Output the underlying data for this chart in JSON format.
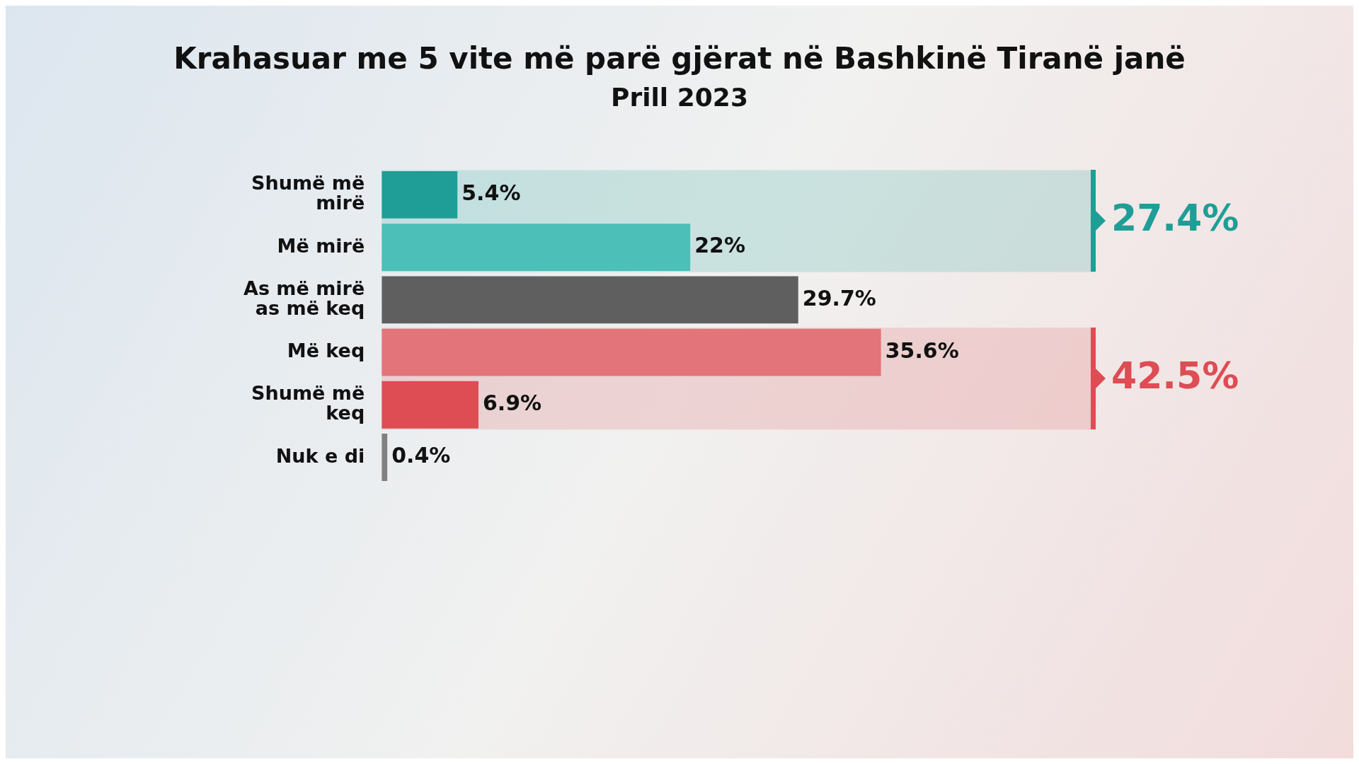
{
  "chart_data": {
    "type": "bar",
    "orientation": "horizontal",
    "title": "Krahasuar me 5 vite më parë gjërat në Bashkinë Tiranë janë",
    "subtitle": "Prill 2023",
    "categories": [
      "Shumë më mirë",
      "Më mirë",
      "As më mirë as më keq",
      "Më keq",
      "Shumë më keq",
      "Nuk e di"
    ],
    "values": [
      5.4,
      22,
      29.7,
      35.6,
      6.9,
      0.4
    ],
    "colors": [
      "#1e9e96",
      "#4bbfb8",
      "#5f5f5f",
      "#e37479",
      "#de4c54",
      "#808080"
    ],
    "value_labels": [
      "5.4%",
      "22%",
      "29.7%",
      "35.6%",
      "6.9%",
      "0.4%"
    ],
    "bands": [
      {
        "axis": "y",
        "from": "Shumë më mirë",
        "to": "Më mirë",
        "label": "27.4%",
        "color": "#1e9e96"
      },
      {
        "axis": "y",
        "from": "Më keq",
        "to": "Shumë më keq",
        "label": "42.5%",
        "color": "#de4c54"
      }
    ],
    "grid": false,
    "legend": false
  }
}
